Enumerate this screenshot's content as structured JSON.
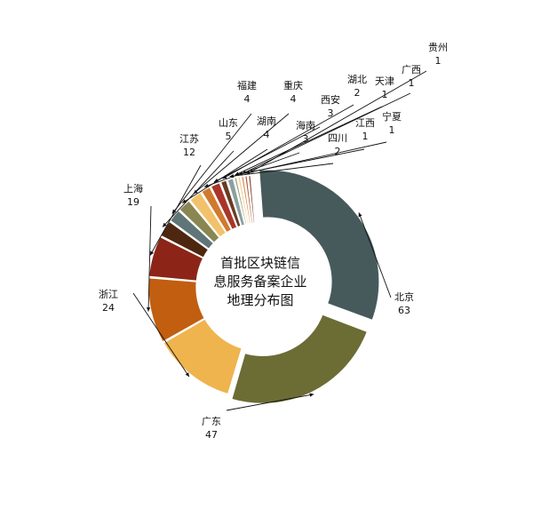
{
  "chart_data": {
    "type": "pie",
    "variant": "donut",
    "title_lines": [
      "首批区块链信",
      "息服务备案企业",
      "地理分布图"
    ],
    "slices": [
      {
        "label": "北京",
        "value": 63,
        "color": "#465a5c"
      },
      {
        "label": "广东",
        "value": 47,
        "color": "#6c6c35"
      },
      {
        "label": "浙江",
        "value": 24,
        "color": "#efb44d"
      },
      {
        "label": "上海",
        "value": 19,
        "color": "#c15e0f"
      },
      {
        "label": "江苏",
        "value": 12,
        "color": "#8c2518"
      },
      {
        "label": "山东",
        "value": 5,
        "color": "#4e2710"
      },
      {
        "label": "福建",
        "value": 4,
        "color": "#5f7578"
      },
      {
        "label": "湖南",
        "value": 4,
        "color": "#8a8652"
      },
      {
        "label": "重庆",
        "value": 4,
        "color": "#f1c26b"
      },
      {
        "label": "海南",
        "value": 3,
        "color": "#d07a2e"
      },
      {
        "label": "西安",
        "value": 3,
        "color": "#a8362a"
      },
      {
        "label": "湖北",
        "value": 2,
        "color": "#6b3b22"
      },
      {
        "label": "四川",
        "value": 2,
        "color": "#8aa0a2"
      },
      {
        "label": "天津",
        "value": 1,
        "color": "#9e9a6a"
      },
      {
        "label": "江西",
        "value": 1,
        "color": "#f3cd85"
      },
      {
        "label": "广西",
        "value": 1,
        "color": "#cf8a4c"
      },
      {
        "label": "宁夏",
        "value": 1,
        "color": "#b9523f"
      },
      {
        "label": "贵州",
        "value": 1,
        "color": "#7a4a2e"
      }
    ]
  }
}
